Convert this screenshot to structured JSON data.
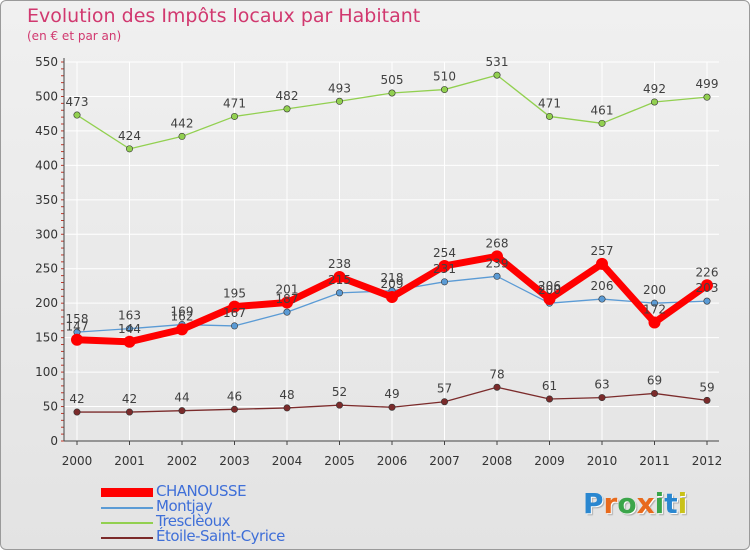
{
  "header": {
    "title": "Evolution des Impôts locaux par Habitant",
    "subtitle": "(en € et par an)"
  },
  "logo": {
    "text": "Proxiti",
    "letters": [
      "P",
      "r",
      "o",
      "x",
      "i",
      "t",
      "i"
    ],
    "colors": [
      "#2a87d0",
      "#e86a1c",
      "#3ba54a",
      "#e86a1c",
      "#3ba54a",
      "#2a87d0",
      "#c9c21a"
    ]
  },
  "colors": {
    "title": "#d1386f",
    "grid": "#ffffff",
    "axis": "#444444"
  },
  "chart_data": {
    "type": "line",
    "title": "Evolution des Impôts locaux par Habitant",
    "subtitle": "(en € et par an)",
    "xlabel": "",
    "ylabel": "",
    "ylim": [
      0,
      550
    ],
    "yticks": [
      0,
      50,
      100,
      150,
      200,
      250,
      300,
      350,
      400,
      450,
      500,
      550
    ],
    "grid": true,
    "legend_position": "bottom-left",
    "x": [
      2000,
      2001,
      2002,
      2003,
      2004,
      2005,
      2006,
      2007,
      2008,
      2009,
      2010,
      2011,
      2012
    ],
    "series": [
      {
        "name": "Tresclèoux",
        "color": "#92d050",
        "values": [
          473,
          424,
          442,
          471,
          482,
          493,
          505,
          510,
          531,
          471,
          461,
          492,
          499
        ],
        "labels": [
          "473",
          "424",
          "442",
          "471",
          "482",
          "493",
          "505",
          "510",
          "531",
          "471",
          "461",
          "492",
          "499"
        ]
      },
      {
        "name": "Étoile-Saint-Cyrice",
        "color": "#7b2b2b",
        "values": [
          42,
          42,
          44,
          46,
          48,
          52,
          49,
          57,
          78,
          61,
          63,
          69,
          59
        ],
        "labels": [
          "42",
          "42",
          "44",
          "46",
          "48",
          "52",
          "49",
          "57",
          "78",
          "61",
          "63",
          "69",
          "59"
        ]
      },
      {
        "name": "Montjay",
        "color": "#5b9bd5",
        "values": [
          158,
          163,
          169,
          167,
          187,
          215,
          218,
          231,
          239,
          200,
          206,
          200,
          203
        ],
        "labels": [
          "158",
          "163",
          "169",
          "167",
          "187",
          "215",
          "218",
          "231",
          "239",
          "200",
          "206",
          "200",
          "203"
        ]
      },
      {
        "name": "CHANOUSSE",
        "color": "#ff0000",
        "values": [
          147,
          144,
          162,
          195,
          201,
          238,
          209,
          254,
          268,
          206,
          257,
          172,
          226
        ],
        "labels": [
          "147",
          "144",
          "162",
          "195",
          "201",
          "238",
          "209",
          "254",
          "268",
          "206",
          "257",
          "172",
          "226"
        ]
      }
    ],
    "legend": [
      {
        "name": "CHANOUSSE",
        "color": "#ff0000",
        "text_color": "#3f6fd8",
        "thick": true
      },
      {
        "name": "Montjay",
        "color": "#5b9bd5",
        "text_color": "#3f6fd8",
        "thick": false
      },
      {
        "name": "Tresclèoux",
        "color": "#92d050",
        "text_color": "#3f6fd8",
        "thick": false
      },
      {
        "name": "Étoile-Saint-Cyrice",
        "color": "#7b2b2b",
        "text_color": "#3f6fd8",
        "thick": false
      }
    ]
  }
}
